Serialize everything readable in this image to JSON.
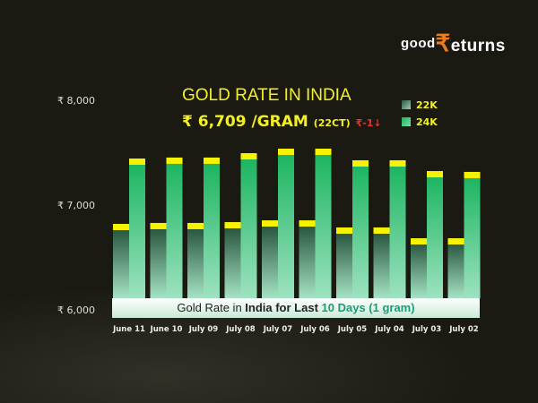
{
  "logo": {
    "part1": "good",
    "part2": "₹",
    "part3": "eturns"
  },
  "header": {
    "title": "GOLD RATE IN INDIA",
    "rate": "₹ 6,709 /GRAM",
    "carat": "(22CT)",
    "change": "₹-1↓"
  },
  "colors": {
    "k22_top": "#1e4a33",
    "k22_bottom": "#a5e3c4",
    "k24_top": "#17b35c",
    "k24_bottom": "#9de2c0",
    "cap": "#f7f200",
    "title": "#f3f024",
    "change": "#e8302c"
  },
  "chart_data": {
    "type": "bar",
    "title": "GOLD RATE IN INDIA",
    "subtitle": "Gold Rate in India for Last 10 Days (1 gram)",
    "categories": [
      "June 11",
      "June 10",
      "July 09",
      "July 08",
      "July 07",
      "July 06",
      "July 05",
      "July 04",
      "July 03",
      "July 02"
    ],
    "series": [
      {
        "name": "22K",
        "values": [
          6829,
          6838,
          6838,
          6846,
          6863,
          6863,
          6795,
          6795,
          6692,
          6692
        ]
      },
      {
        "name": "24K",
        "values": [
          7453,
          7462,
          7462,
          7504,
          7547,
          7547,
          7436,
          7436,
          7333,
          7325
        ]
      }
    ],
    "yticks": [
      "₹ 8,000",
      "₹ 7,000",
      "₹ 6,000"
    ],
    "ylim": [
      6000,
      8000
    ],
    "legend": "top-right",
    "grid": false
  },
  "band": {
    "part1": "Gold Rate in ",
    "part2": "India for Last ",
    "part3": " 10 Days (1 gram)"
  }
}
